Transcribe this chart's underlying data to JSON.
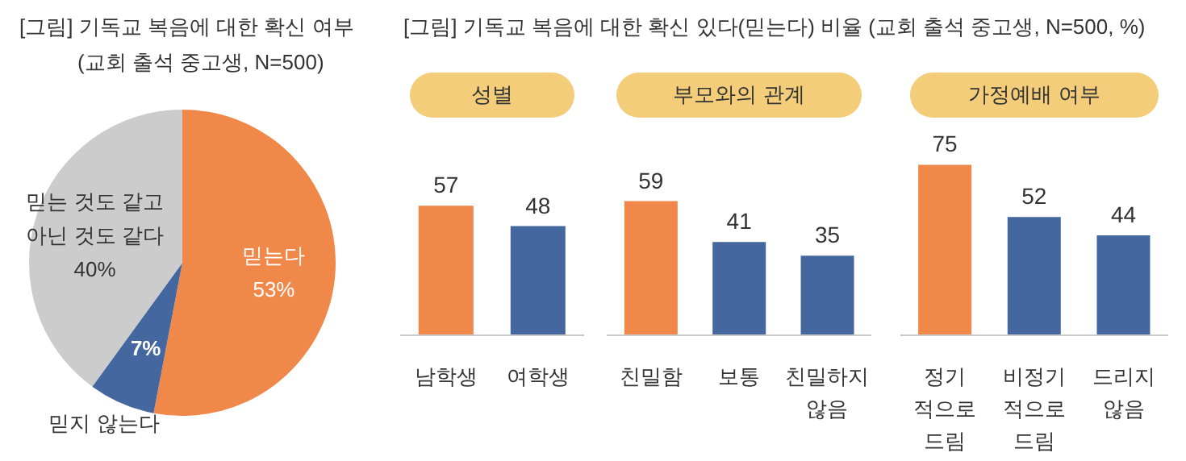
{
  "chart_data": [
    {
      "type": "pie",
      "title": "[그림] 기독교 복음에 대한 확신 여부",
      "subtitle": "(교회 출석 중고생, N=500)",
      "categories": [
        "믿는다",
        "믿지 않는다",
        "믿는 것도 같고\n아닌 것도 같다"
      ],
      "values": [
        53,
        7,
        40
      ],
      "value_labels": [
        "53%",
        "7%",
        "40%"
      ],
      "colors": [
        "#f0884a",
        "#44679f",
        "#cccccc"
      ]
    },
    {
      "type": "bar",
      "title": "[그림] 기독교 복음에 대한 확신 있다(믿는다) 비율 (교회 출석 중고생, N=500, %)",
      "subtitle": "성별",
      "categories": [
        "남학생",
        "여학생"
      ],
      "values": [
        57,
        48
      ],
      "colors": [
        "#f0884a",
        "#44679f"
      ],
      "data_labels": true
    },
    {
      "type": "bar",
      "subtitle": "부모와의 관계",
      "categories": [
        "친밀함",
        "보통",
        "친밀하지\n않음"
      ],
      "values": [
        59,
        41,
        35
      ],
      "colors": [
        "#f0884a",
        "#44679f",
        "#44679f"
      ],
      "data_labels": true
    },
    {
      "type": "bar",
      "subtitle": "가정예배 여부",
      "categories": [
        "정기\n적으로\n드림",
        "비정기\n적으로\n드림",
        "드리지\n않음"
      ],
      "values": [
        75,
        52,
        44
      ],
      "colors": [
        "#f0884a",
        "#44679f",
        "#44679f"
      ],
      "data_labels": true
    }
  ]
}
